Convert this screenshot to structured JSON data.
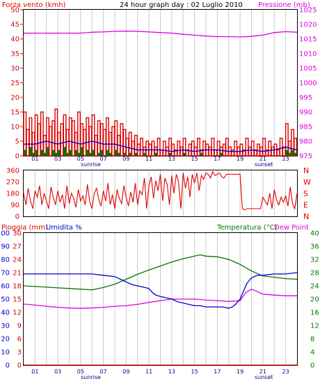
{
  "header": {
    "title": "24 hour graph day : 02 Luglio 2010",
    "left_label": "Forza vento (kmh)",
    "right_label": "Pressione (mb)"
  },
  "colors": {
    "red": "#e00000",
    "magenta": "#dd00dd",
    "blue": "#0000cc",
    "green": "#007700",
    "grid": "#c8c8c8",
    "axis_line": "#000000"
  },
  "hours": [
    "01",
    "03",
    "05",
    "07",
    "09",
    "11",
    "13",
    "15",
    "17",
    "19",
    "21",
    "23"
  ],
  "sun_labels": {
    "sunrise": "sunrise",
    "sunset": "sunset"
  },
  "chart_data": [
    {
      "type": "bar",
      "name": "wind",
      "ylim": [
        0,
        50
      ],
      "yticks": [
        0,
        5,
        10,
        15,
        20,
        25,
        30,
        35,
        40,
        45,
        50
      ],
      "y2lim": [
        975,
        1025
      ],
      "y2ticks": [
        975,
        980,
        985,
        990,
        995,
        1000,
        1005,
        1010,
        1015,
        1020,
        1025
      ],
      "xlim": [
        0,
        24
      ],
      "series": [
        {
          "name": "Forza vento (kmh)",
          "kind": "gust",
          "x": [
            0.0,
            0.25,
            0.5,
            0.75,
            1.0,
            1.25,
            1.5,
            1.75,
            2.0,
            2.25,
            2.5,
            2.75,
            3.0,
            3.25,
            3.5,
            3.75,
            4.0,
            4.25,
            4.5,
            4.75,
            5.0,
            5.25,
            5.5,
            5.75,
            6.0,
            6.25,
            6.5,
            6.75,
            7.0,
            7.25,
            7.5,
            7.75,
            8.0,
            8.25,
            8.5,
            8.75,
            9.0,
            9.25,
            9.5,
            9.75,
            10.0,
            10.25,
            10.5,
            10.75,
            11.0,
            11.25,
            11.5,
            11.75,
            12.0,
            12.25,
            12.5,
            12.75,
            13.0,
            13.25,
            13.5,
            13.75,
            14.0,
            14.25,
            14.5,
            14.75,
            15.0,
            15.25,
            15.5,
            15.75,
            16.0,
            16.25,
            16.5,
            16.75,
            17.0,
            17.25,
            17.5,
            17.75,
            18.0,
            18.25,
            18.5,
            18.75,
            19.0,
            19.25,
            19.5,
            19.75,
            20.0,
            20.25,
            20.5,
            20.75,
            21.0,
            21.25,
            21.5,
            21.75,
            22.0,
            22.25,
            22.5,
            22.75,
            23.0,
            23.25,
            23.5,
            23.75
          ],
          "values": [
            15,
            9,
            13,
            8,
            14,
            11,
            15,
            7,
            13,
            10,
            12,
            16,
            8,
            11,
            14,
            9,
            13,
            12,
            8,
            15,
            11,
            9,
            13,
            10,
            14,
            7,
            12,
            11,
            9,
            13,
            8,
            10,
            12,
            7,
            11,
            9,
            6,
            8,
            5,
            7,
            4,
            6,
            3,
            5,
            4,
            5,
            3,
            6,
            2,
            5,
            3,
            6,
            4,
            2,
            5,
            3,
            6,
            2,
            4,
            5,
            3,
            6,
            2,
            5,
            4,
            3,
            6,
            2,
            5,
            3,
            4,
            6,
            3,
            2,
            5,
            3,
            4,
            2,
            6,
            3,
            5,
            2,
            4,
            3,
            6,
            2,
            5,
            3,
            4,
            2,
            6,
            3,
            11,
            5,
            9,
            6
          ]
        },
        {
          "name": "average",
          "kind": "line",
          "x": [
            0,
            1,
            2,
            3,
            4,
            5,
            6,
            7,
            8,
            9,
            10,
            11,
            12,
            13,
            14,
            15,
            16,
            17,
            18,
            19,
            20,
            21,
            22,
            23,
            24
          ],
          "values": [
            4,
            4,
            5,
            4,
            5,
            4,
            5,
            4,
            4,
            3,
            2,
            2,
            2,
            1.5,
            2,
            1.5,
            2,
            2,
            1.5,
            1.5,
            2,
            1.5,
            2,
            3,
            2
          ]
        },
        {
          "name": "minimum",
          "kind": "bar",
          "x": [
            0.0,
            0.25,
            0.5,
            0.75,
            1.0,
            1.25,
            1.5,
            1.75,
            2.0,
            2.25,
            2.5,
            2.75,
            3.0,
            3.25,
            3.5,
            3.75,
            4.0,
            4.25,
            4.5,
            4.75,
            5.0,
            5.25,
            5.5,
            5.75,
            6.0,
            6.25,
            6.5,
            6.75,
            7.0,
            7.25,
            7.5,
            7.75,
            8.0,
            8.25,
            8.5,
            8.75,
            9.0,
            9.25,
            9.5,
            9.75,
            10.0,
            10.25,
            10.5,
            10.75,
            11.0,
            11.25,
            11.5,
            11.75,
            12.0,
            12.25,
            12.5,
            12.75,
            13.0,
            13.25,
            13.5,
            13.75,
            14.0,
            14.25,
            14.5,
            14.75,
            15.0,
            15.25,
            15.5,
            15.75,
            16.0,
            16.25,
            16.5,
            16.75,
            17.0,
            17.25,
            17.5,
            17.75,
            18.0,
            18.25,
            18.5,
            18.75,
            19.0,
            19.25,
            19.5,
            19.75,
            20.0,
            20.25,
            20.5,
            20.75,
            21.0,
            21.25,
            21.5,
            21.75,
            22.0,
            22.25,
            22.5,
            22.75,
            23.0,
            23.25,
            23.5,
            23.75
          ],
          "values": [
            2,
            0,
            3,
            1,
            2,
            0,
            2,
            1,
            3,
            0,
            2,
            1,
            2,
            0,
            3,
            1,
            2,
            0,
            2,
            1,
            3,
            0,
            2,
            1,
            2,
            0,
            1,
            2,
            0,
            2,
            1,
            0,
            2,
            1,
            0,
            1,
            0,
            1,
            0,
            1,
            0,
            0,
            1,
            0,
            0,
            0,
            1,
            0,
            0,
            0,
            0,
            1,
            0,
            0,
            0,
            0,
            1,
            0,
            0,
            0,
            0,
            0,
            1,
            0,
            0,
            0,
            0,
            0,
            0,
            1,
            0,
            0,
            0,
            0,
            0,
            0,
            0,
            0,
            0,
            0,
            0,
            0,
            0,
            0,
            0,
            0,
            0,
            0,
            0,
            0,
            0,
            0,
            2,
            1,
            2,
            1
          ]
        },
        {
          "name": "Pressione (mb)",
          "kind": "line",
          "axis": "right",
          "x": [
            0,
            1,
            2,
            3,
            4,
            5,
            6,
            7,
            8,
            9,
            10,
            11,
            12,
            13,
            14,
            15,
            16,
            17,
            18,
            19,
            20,
            21,
            22,
            23,
            24
          ],
          "values": [
            1017,
            1017,
            1017,
            1017,
            1017,
            1017,
            1017.3,
            1017.4,
            1017.6,
            1017.7,
            1017.6,
            1017.4,
            1017.2,
            1017,
            1016.6,
            1016.3,
            1016,
            1015.8,
            1015.8,
            1015.7,
            1015.9,
            1016.3,
            1017.2,
            1017.5,
            1017.3
          ]
        }
      ]
    },
    {
      "type": "line",
      "name": "wind_direction",
      "ylim": [
        0,
        360
      ],
      "yticks": [
        0,
        90,
        180,
        270,
        360
      ],
      "right_labels": [
        "N",
        "W",
        "S",
        "E",
        "N"
      ],
      "xlim": [
        0,
        24
      ],
      "series": [
        {
          "name": "direction",
          "x": [
            0.0,
            0.2,
            0.4,
            0.6,
            0.8,
            1.0,
            1.2,
            1.4,
            1.6,
            1.8,
            2.0,
            2.2,
            2.4,
            2.6,
            2.8,
            3.0,
            3.2,
            3.4,
            3.6,
            3.8,
            4.0,
            4.2,
            4.4,
            4.6,
            4.8,
            5.0,
            5.2,
            5.4,
            5.6,
            5.8,
            6.0,
            6.2,
            6.4,
            6.6,
            6.8,
            7.0,
            7.2,
            7.4,
            7.6,
            7.8,
            8.0,
            8.2,
            8.4,
            8.6,
            8.8,
            9.0,
            9.2,
            9.4,
            9.6,
            9.8,
            10.0,
            10.2,
            10.4,
            10.6,
            10.8,
            11.0,
            11.2,
            11.4,
            11.6,
            11.8,
            12.0,
            12.2,
            12.4,
            12.6,
            12.8,
            13.0,
            13.2,
            13.4,
            13.6,
            13.8,
            14.0,
            14.2,
            14.4,
            14.6,
            14.8,
            15.0,
            15.2,
            15.4,
            15.6,
            15.8,
            16.0,
            16.2,
            16.4,
            16.6,
            16.8,
            17.0,
            17.2,
            17.4,
            17.6,
            17.8,
            18.0,
            18.2,
            18.4,
            18.6,
            18.8,
            19.0,
            19.2,
            19.4,
            19.6,
            19.8,
            20.0,
            20.2,
            20.4,
            20.6,
            20.8,
            21.0,
            21.2,
            21.4,
            21.6,
            21.8,
            22.0,
            22.2,
            22.4,
            22.6,
            22.8,
            23.0,
            23.2,
            23.4,
            23.6,
            23.8,
            24.0
          ],
          "values": [
            180,
            90,
            220,
            120,
            60,
            200,
            150,
            240,
            90,
            180,
            120,
            60,
            230,
            150,
            90,
            200,
            110,
            170,
            60,
            240,
            100,
            180,
            140,
            70,
            210,
            120,
            160,
            90,
            250,
            110,
            60,
            180,
            220,
            130,
            80,
            200,
            120,
            260,
            90,
            170,
            60,
            210,
            140,
            100,
            240,
            150,
            80,
            190,
            110,
            260,
            90,
            200,
            170,
            300,
            60,
            240,
            310,
            140,
            280,
            200,
            330,
            120,
            300,
            250,
            90,
            320,
            180,
            330,
            270,
            60,
            340,
            220,
            310,
            150,
            330,
            260,
            340,
            200,
            320,
            290,
            340,
            330,
            300,
            350,
            320,
            330,
            340,
            310,
            300,
            330,
            330,
            330,
            330,
            330,
            330,
            330,
            60,
            50,
            60,
            60,
            60,
            60,
            60,
            60,
            60,
            150,
            120,
            90,
            180,
            60,
            210,
            130,
            90,
            150,
            110,
            160,
            80,
            230,
            100,
            60,
            180
          ]
        }
      ]
    },
    {
      "type": "line",
      "name": "temp_humidity",
      "xlim": [
        0,
        24
      ],
      "axis_labels": {
        "rain": "Pioggia (mm)",
        "humidity": "Umidita %",
        "temperature": "Temperatura (°C)",
        "dewpoint": "Dew Point"
      },
      "humidity_ticks": [
        0,
        10,
        20,
        30,
        40,
        50,
        60,
        70,
        80,
        90,
        100
      ],
      "rain_ticks": [
        0,
        3,
        6,
        9,
        12,
        15,
        18,
        21,
        24,
        27,
        30
      ],
      "temp_ticks": [
        0,
        4,
        8,
        12,
        16,
        20,
        24,
        28,
        32,
        36,
        40
      ],
      "rain_lim": [
        0,
        30
      ],
      "humidity_lim": [
        0,
        100
      ],
      "temp_lim": [
        0,
        40
      ],
      "series": [
        {
          "name": "Umidita %",
          "axis": "humidity",
          "x": [
            0,
            1,
            2,
            3,
            4,
            5,
            6,
            7,
            8,
            8.5,
            9,
            9.5,
            10,
            10.5,
            11,
            11.3,
            11.6,
            12,
            12.5,
            13,
            13.5,
            14,
            14.5,
            15,
            15.5,
            16,
            16.5,
            17,
            17.5,
            18,
            18.3,
            18.6,
            19,
            19.3,
            19.6,
            20,
            20.5,
            21,
            22,
            23,
            24
          ],
          "values": [
            69,
            69,
            69,
            69,
            69,
            69,
            69,
            68,
            67,
            65,
            63,
            61,
            60,
            59,
            58,
            55,
            53,
            52,
            51,
            50,
            48,
            47,
            46,
            45,
            45,
            44,
            44,
            44,
            44,
            43,
            44,
            46,
            50,
            56,
            62,
            66,
            68,
            68,
            69,
            69,
            70
          ]
        },
        {
          "name": "Temperatura (°C)",
          "axis": "temp",
          "x": [
            0,
            1,
            2,
            3,
            4,
            5,
            6,
            7,
            8,
            9,
            10,
            11,
            12,
            13,
            14,
            15,
            15.5,
            16,
            17,
            18,
            19,
            20,
            21,
            22,
            23,
            24
          ],
          "values": [
            24,
            23.8,
            23.6,
            23.4,
            23.2,
            23,
            22.8,
            23.5,
            24.5,
            26,
            27.5,
            28.8,
            30,
            31.2,
            32.2,
            33,
            33.4,
            33,
            32.8,
            32,
            30.5,
            28.5,
            27,
            26.6,
            26.2,
            26
          ]
        },
        {
          "name": "Dew Point",
          "axis": "temp",
          "x": [
            0,
            1,
            2,
            3,
            4,
            5,
            6,
            7,
            8,
            9,
            10,
            11,
            12,
            13,
            14,
            15,
            16,
            17,
            18,
            19,
            19.5,
            20,
            21,
            22,
            23,
            24
          ],
          "values": [
            18.5,
            18.2,
            17.8,
            17.5,
            17.3,
            17.2,
            17.3,
            17.5,
            17.8,
            18,
            18.4,
            19,
            19.5,
            20,
            20,
            20,
            19.7,
            19.5,
            19.3,
            19.5,
            22,
            23,
            21.5,
            21.2,
            21,
            21
          ]
        },
        {
          "name": "Pioggia (mm)",
          "axis": "rain",
          "x": [
            0,
            24
          ],
          "values": [
            0,
            0
          ]
        }
      ]
    }
  ]
}
